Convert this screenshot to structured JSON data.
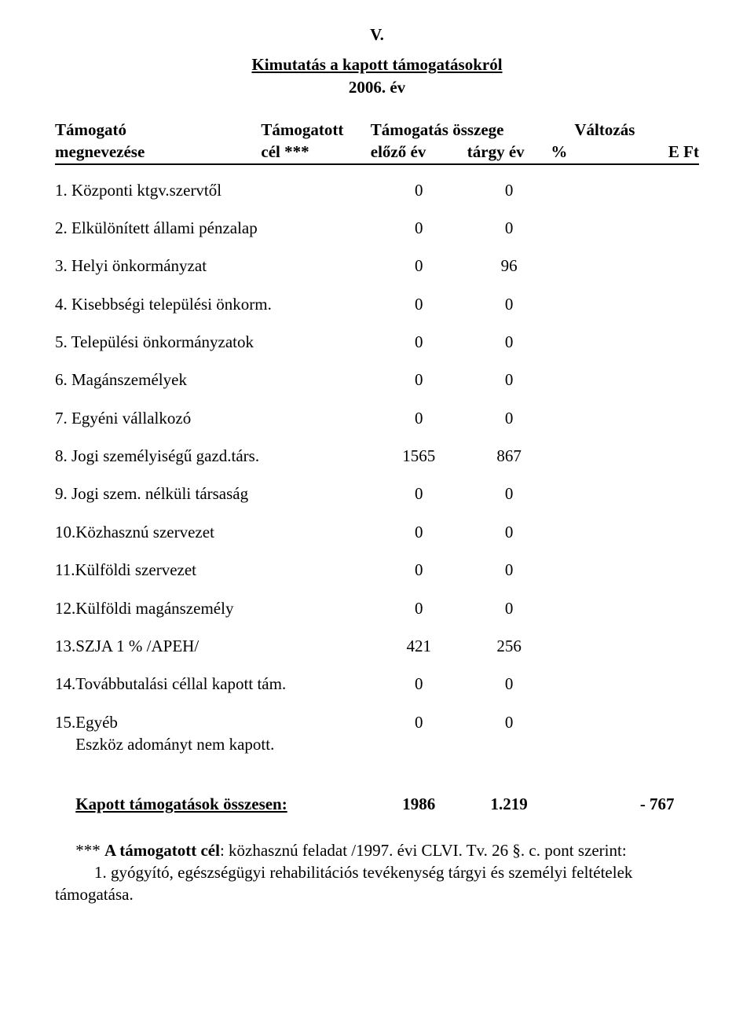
{
  "section_number": "V.",
  "title_line1": "Kimutatás a kapott támogatásokról",
  "title_line2": "2006. év",
  "header": {
    "col1_top": "Támogató",
    "col1_bottom": "megnevezése",
    "col2_top": "Támogatott",
    "col2_bottom": "cél ***",
    "col3_top": "Támogatás összege",
    "col3a_bottom": "előző év",
    "col3b_bottom": "tárgy év",
    "col4_top": "Változás",
    "col4a_bottom": "%",
    "col4b_bottom": "E  Ft"
  },
  "rows": [
    {
      "label": "1. Központi ktgv.szervtől",
      "v1": "0",
      "v2": "0",
      "pct": "",
      "eft": ""
    },
    {
      "label": "2. Elkülönített állami pénzalap",
      "v1": "0",
      "v2": "0",
      "pct": "",
      "eft": ""
    },
    {
      "label": "3. Helyi önkormányzat",
      "v1": "0",
      "v2": "96",
      "pct": "",
      "eft": ""
    },
    {
      "label": "4. Kisebbségi települési önkorm.",
      "v1": "0",
      "v2": "0",
      "pct": "",
      "eft": ""
    },
    {
      "label": "5. Települési önkormányzatok",
      "v1": "0",
      "v2": "0",
      "pct": "",
      "eft": ""
    },
    {
      "label": "6. Magánszemélyek",
      "v1": "0",
      "v2": "0",
      "pct": "",
      "eft": ""
    },
    {
      "label": "7. Egyéni vállalkozó",
      "v1": "0",
      "v2": "0",
      "pct": "",
      "eft": ""
    },
    {
      "label": "8. Jogi személyiségű gazd.társ.",
      "v1": "1565",
      "v2": "867",
      "pct": "",
      "eft": ""
    },
    {
      "label": "9. Jogi szem. nélküli társaság",
      "v1": "0",
      "v2": "0",
      "pct": "",
      "eft": ""
    },
    {
      "label": "10.Közhasznú szervezet",
      "v1": "0",
      "v2": "0",
      "pct": "",
      "eft": ""
    },
    {
      "label": "11.Külföldi szervezet",
      "v1": "0",
      "v2": "0",
      "pct": "",
      "eft": ""
    },
    {
      "label": "12.Külföldi magánszemély",
      "v1": "0",
      "v2": "0",
      "pct": "",
      "eft": ""
    },
    {
      "label": "13.SZJA 1 % /APEH/",
      "v1": "421",
      "v2": "256",
      "pct": "",
      "eft": ""
    },
    {
      "label": "14.Továbbutalási céllal kapott tám.",
      "v1": "0",
      "v2": "0",
      "pct": "",
      "eft": ""
    },
    {
      "label": "15.Egyéb",
      "v1": "0",
      "v2": "0",
      "pct": "",
      "eft": ""
    }
  ],
  "row15_sub": "     Eszköz adományt nem kapott.",
  "total": {
    "label": "Kapott támogatások összesen:",
    "v1": "1986",
    "v2": "1.219",
    "pct": "",
    "eft": "- 767"
  },
  "footnote1": "     *** A támogatott cél: közhasznú feladat /1997. évi CLVI. Tv. 26 §. c. pont szerint:",
  "footnote1_bold": "A támogatott cél",
  "footnote2_prefix": "      1. gyógyító, egészségügyi rehabilitációs tevékenység tárgyi és személyi feltételek",
  "footnote3": "támogatása."
}
